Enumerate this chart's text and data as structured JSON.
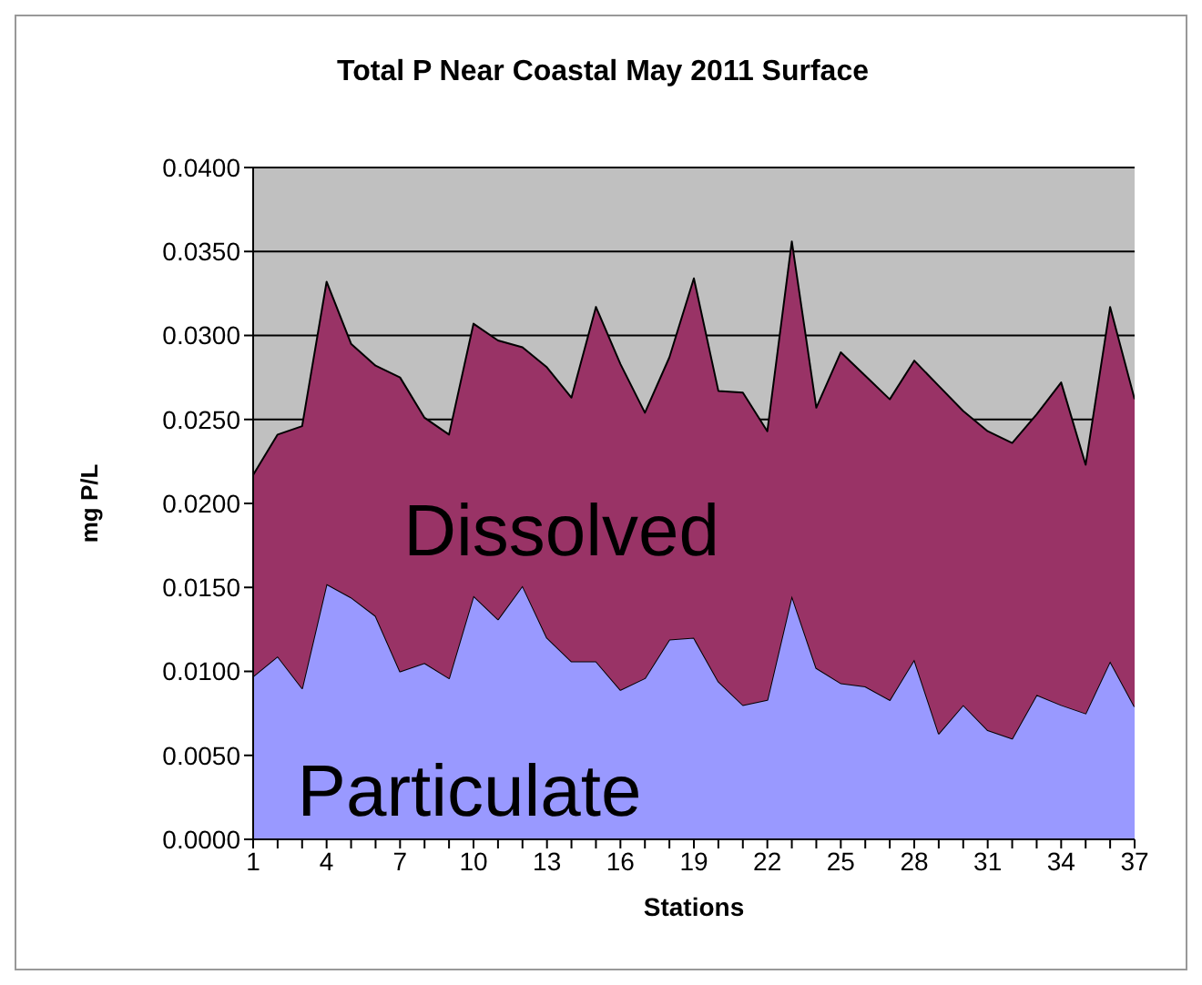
{
  "chart_data": {
    "type": "area",
    "title": "Total P Near Coastal May 2011 Surface",
    "xlabel": "Stations",
    "ylabel": "mg P/L",
    "x": [
      1,
      2,
      3,
      4,
      5,
      6,
      7,
      8,
      9,
      10,
      11,
      12,
      13,
      14,
      15,
      16,
      17,
      18,
      19,
      20,
      21,
      22,
      23,
      24,
      25,
      26,
      27,
      28,
      29,
      30,
      31,
      32,
      33,
      34,
      35,
      36,
      37
    ],
    "stacked": true,
    "grid": "y",
    "legend": false,
    "series": [
      {
        "name": "Particulate",
        "color": "#9999ff",
        "values": [
          0.0097,
          0.0109,
          0.009,
          0.0152,
          0.0144,
          0.0133,
          0.01,
          0.0105,
          0.0096,
          0.0145,
          0.0131,
          0.0151,
          0.012,
          0.0106,
          0.0106,
          0.0089,
          0.0096,
          0.0119,
          0.012,
          0.0094,
          0.008,
          0.0083,
          0.0145,
          0.0102,
          0.0093,
          0.0091,
          0.0083,
          0.0107,
          0.0063,
          0.008,
          0.0065,
          0.006,
          0.0086,
          0.008,
          0.0075,
          0.0106,
          0.0079
        ]
      },
      {
        "name": "Dissolved",
        "color": "#993366",
        "values": [
          0.012,
          0.0132,
          0.0156,
          0.018,
          0.0151,
          0.0149,
          0.0175,
          0.0146,
          0.0145,
          0.0162,
          0.0166,
          0.0142,
          0.0161,
          0.0157,
          0.0211,
          0.0194,
          0.0158,
          0.0168,
          0.0214,
          0.0173,
          0.0186,
          0.016,
          0.0211,
          0.0155,
          0.0197,
          0.0185,
          0.0179,
          0.0178,
          0.0207,
          0.0175,
          0.0178,
          0.0176,
          0.0167,
          0.0192,
          0.0148,
          0.0211,
          0.0183
        ]
      }
    ],
    "xlim": [
      1,
      37
    ],
    "xticks": [
      1,
      {
        "value": 2,
        "label": null
      },
      {
        "value": 3,
        "label": null
      },
      4,
      {
        "value": 5,
        "label": null
      },
      {
        "value": 6,
        "label": null
      },
      7,
      {
        "value": 8,
        "label": null
      },
      {
        "value": 9,
        "label": null
      },
      10,
      {
        "value": 11,
        "label": null
      },
      {
        "value": 12,
        "label": null
      },
      13,
      {
        "value": 14,
        "label": null
      },
      {
        "value": 15,
        "label": null
      },
      16,
      {
        "value": 17,
        "label": null
      },
      {
        "value": 18,
        "label": null
      },
      19,
      {
        "value": 20,
        "label": null
      },
      {
        "value": 21,
        "label": null
      },
      22,
      {
        "value": 23,
        "label": null
      },
      {
        "value": 24,
        "label": null
      },
      25,
      {
        "value": 26,
        "label": null
      },
      {
        "value": 27,
        "label": null
      },
      28,
      {
        "value": 29,
        "label": null
      },
      {
        "value": 30,
        "label": null
      },
      31,
      {
        "value": 32,
        "label": null
      },
      {
        "value": 33,
        "label": null
      },
      34,
      {
        "value": 35,
        "label": null
      },
      {
        "value": 36,
        "label": null
      },
      37
    ],
    "ylim": [
      0,
      0.04
    ],
    "yticks": [
      {
        "value": 0,
        "label": "0.0000"
      },
      {
        "value": 0.005,
        "label": "0.0050"
      },
      {
        "value": 0.01,
        "label": "0.0100"
      },
      {
        "value": 0.015,
        "label": "0.0150"
      },
      {
        "value": 0.02,
        "label": "0.0200"
      },
      {
        "value": 0.025,
        "label": "0.0250"
      },
      {
        "value": 0.03,
        "label": "0.0300"
      },
      {
        "value": 0.035,
        "label": "0.0350"
      },
      {
        "value": 0.04,
        "label": "0.0400"
      }
    ]
  }
}
